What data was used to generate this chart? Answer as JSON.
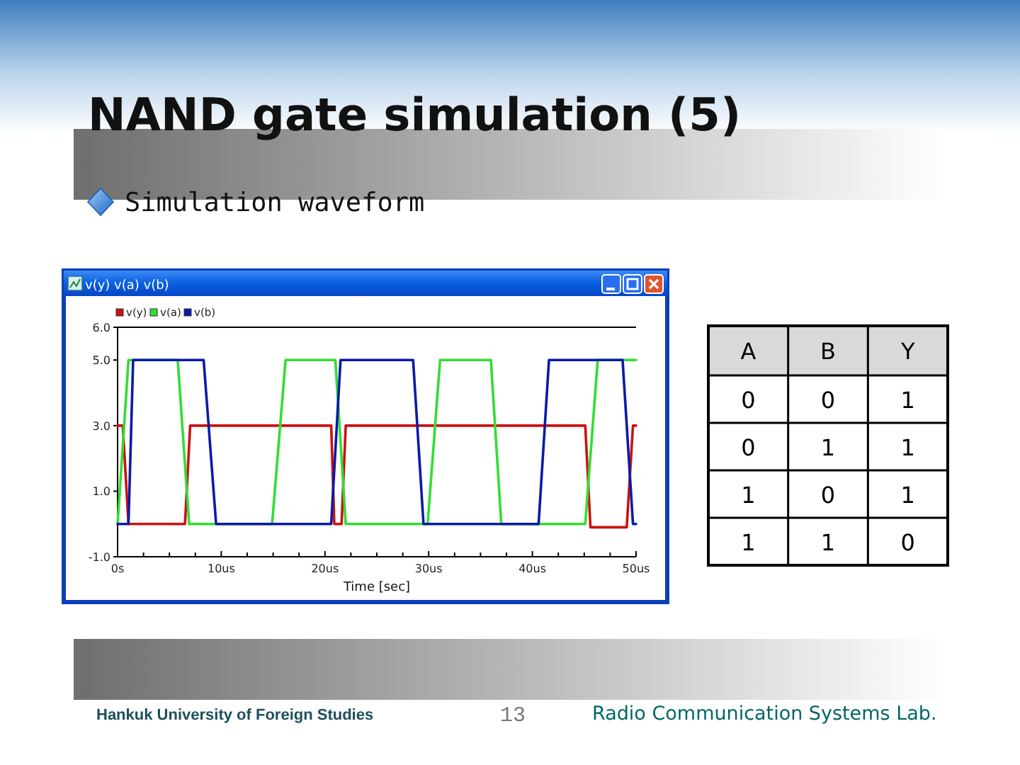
{
  "chart_data": [
    {
      "type": "line",
      "title": "NAND gate simulation (5)",
      "subtitle": "Simulation waveform",
      "xlabel": "Time [sec]",
      "legend": "top left",
      "annotations": [
        "v(y) v(a) v(b)",
        "Hankuk University of Foreign Studies",
        "13",
        "Radio Communication Systems Lab."
      ],
      "xlim": [
        0,
        50
      ],
      "xticks": [
        {
          "value": 0,
          "label": "0s"
        },
        {
          "value": 2.5,
          "label": null
        },
        {
          "value": 5,
          "label": null
        },
        {
          "value": 7.5,
          "label": null
        },
        {
          "value": 10,
          "label": "10us"
        },
        {
          "value": 12.5,
          "label": null
        },
        {
          "value": 15,
          "label": null
        },
        {
          "value": 17.5,
          "label": null
        },
        {
          "value": 20,
          "label": "20us"
        },
        {
          "value": 22.5,
          "label": null
        },
        {
          "value": 25,
          "label": null
        },
        {
          "value": 27.5,
          "label": null
        },
        {
          "value": 30,
          "label": "30us"
        },
        {
          "value": 32.5,
          "label": null
        },
        {
          "value": 35,
          "label": null
        },
        {
          "value": 37.5,
          "label": null
        },
        {
          "value": 40,
          "label": "40us"
        },
        {
          "value": 42.5,
          "label": null
        },
        {
          "value": 45,
          "label": null
        },
        {
          "value": 47.5,
          "label": null
        },
        {
          "value": 50,
          "label": "50us"
        }
      ],
      "ylim": [
        -1,
        6
      ],
      "yticks": [
        {
          "value": -1,
          "label": "-1.0"
        },
        {
          "value": 1,
          "label": "1.0"
        },
        {
          "value": 3,
          "label": "3.0"
        },
        {
          "value": 5,
          "label": "5.0"
        },
        {
          "value": 6,
          "label": "6.0"
        }
      ],
      "series": [
        {
          "name": "v(y)",
          "color": "#cc1111",
          "x": [
            0,
            0.5,
            1.05,
            6.5,
            7.0,
            20.6,
            20.9,
            21.6,
            22.0,
            45.1,
            45.6,
            49.1,
            49.7,
            50
          ],
          "values": [
            3,
            3,
            0,
            0,
            3,
            3,
            0,
            0,
            3,
            3,
            -0.1,
            -0.1,
            3,
            3
          ]
        },
        {
          "name": "v(a)",
          "color": "#33dd33",
          "x": [
            0,
            1.05,
            5.8,
            6.9,
            14.9,
            16.2,
            21.0,
            22.0,
            29.9,
            31.1,
            36.0,
            37.0,
            45.1,
            46.3,
            50
          ],
          "values": [
            0,
            5,
            5,
            0,
            0,
            5,
            5,
            0,
            0,
            5,
            5,
            0,
            0,
            5,
            5
          ]
        },
        {
          "name": "v(b)",
          "color": "#0a1aa8",
          "x": [
            0,
            1.05,
            1.5,
            8.3,
            9.5,
            20.6,
            21.5,
            28.5,
            29.5,
            40.6,
            41.6,
            48.7,
            49.7,
            50
          ],
          "values": [
            0,
            0,
            5,
            5,
            0,
            0,
            5,
            5,
            0,
            0,
            5,
            5,
            0,
            0
          ]
        }
      ]
    },
    {
      "type": "other",
      "categories": [
        "A",
        "B",
        "Y"
      ],
      "cell_labels": [
        [
          "0",
          "0",
          "1"
        ],
        [
          "0",
          "1",
          "1"
        ],
        [
          "1",
          "0",
          "1"
        ],
        [
          "1",
          "1",
          "0"
        ]
      ]
    }
  ]
}
